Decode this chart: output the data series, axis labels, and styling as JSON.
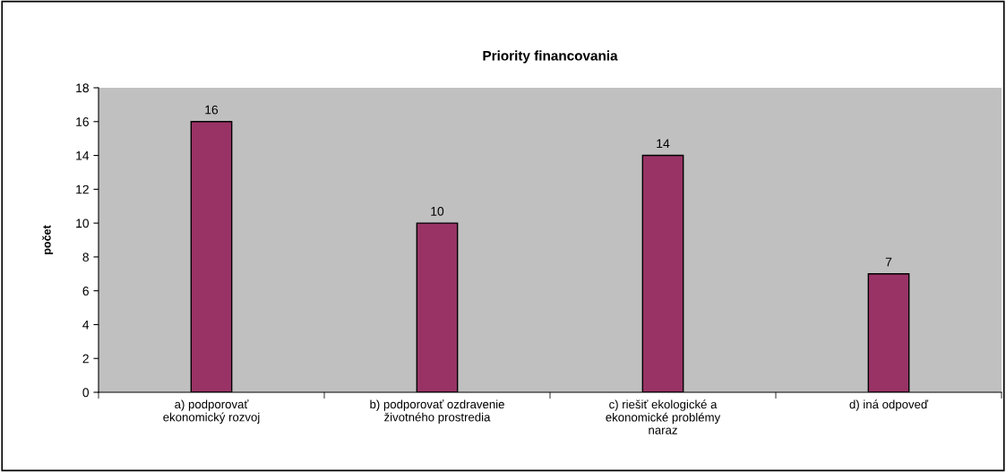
{
  "chart_data": {
    "type": "bar",
    "title": "Priority financovania",
    "ylabel": "počet",
    "categories": [
      "a) podporovať\nekonomický rozvoj",
      "b) podporovať ozdravenie\nživotného prostredia",
      "c) riešiť ekologické a\nekonomické problémy\nnaraz",
      "d) iná odpoveď"
    ],
    "values": [
      16,
      10,
      14,
      7
    ],
    "color": "#993366",
    "ylim": [
      0,
      18
    ],
    "yticks": [
      0,
      2,
      4,
      6,
      8,
      10,
      12,
      14,
      16,
      18
    ],
    "grid": false,
    "data_labels": true
  }
}
